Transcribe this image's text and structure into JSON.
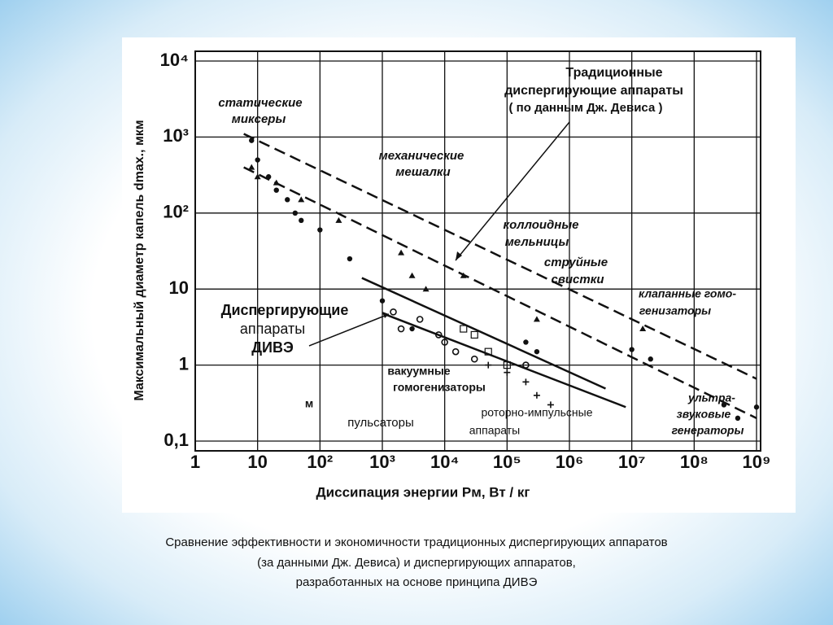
{
  "chart_data": {
    "type": "scatter",
    "xlabel": "Диссипация энергии Pм, Вт / кг",
    "ylabel": "Максимальный диаметр капель dmax., мкм",
    "xscale": "log",
    "yscale": "log",
    "grid": true,
    "xlim": [
      1,
      1000000000
    ],
    "ylim": [
      0.1,
      10000
    ],
    "xticks": [
      1,
      10,
      {
        "value": 100,
        "label": "10²"
      },
      {
        "value": 1000,
        "label": "10³"
      },
      {
        "value": 10000,
        "label": "10⁴"
      },
      {
        "value": 100000,
        "label": "10⁵"
      },
      {
        "value": 1000000,
        "label": "10⁶"
      },
      {
        "value": 10000000,
        "label": "10⁷"
      },
      {
        "value": 100000000,
        "label": "10⁸"
      },
      {
        "value": 1000000000,
        "label": "10⁹"
      }
    ],
    "yticks": [
      {
        "value": 0.1,
        "label": "0,1"
      },
      1,
      10,
      {
        "value": 100,
        "label": "10²"
      },
      {
        "value": 1000,
        "label": "10³"
      },
      {
        "value": 10000,
        "label": "10⁴"
      }
    ],
    "series": [
      {
        "marker": "dot",
        "color": "#111111",
        "x": [
          8,
          10,
          15,
          20,
          30,
          40,
          50,
          100,
          300,
          1000,
          3000,
          200000,
          300000,
          10000000,
          20000000,
          300000000,
          500000000,
          1000000000
        ],
        "values": [
          900,
          500,
          300,
          200,
          150,
          100,
          80,
          60,
          25,
          7,
          3,
          2,
          1.5,
          1.6,
          1.2,
          0.3,
          0.2,
          0.28
        ]
      },
      {
        "marker": "triangle",
        "color": "#111111",
        "x": [
          8,
          10,
          20,
          50,
          200,
          2000,
          3000,
          5000,
          20000,
          300000,
          15000000
        ],
        "values": [
          400,
          300,
          250,
          150,
          80,
          30,
          15,
          10,
          15,
          4,
          3
        ]
      },
      {
        "marker": "circle",
        "color": "#111111",
        "x": [
          1500,
          2000,
          4000,
          8000,
          10000,
          15000,
          30000,
          200000
        ],
        "values": [
          5,
          3,
          4,
          2.5,
          2,
          1.5,
          1.2,
          1
        ]
      },
      {
        "marker": "square",
        "color": "#111111",
        "x": [
          20000,
          30000,
          50000,
          100000
        ],
        "values": [
          3,
          2.5,
          1.5,
          1
        ]
      },
      {
        "marker": "plus",
        "color": "#111111",
        "x": [
          50000,
          100000,
          200000,
          300000,
          500000
        ],
        "values": [
          1,
          0.8,
          0.6,
          0.4,
          0.3
        ]
      }
    ],
    "lines": [
      {
        "style": "dashed",
        "x": [
          6,
          1000000000
        ],
        "values": [
          1100,
          0.66
        ]
      },
      {
        "style": "dashed",
        "x": [
          6,
          1000000000
        ],
        "values": [
          400,
          0.2
        ]
      },
      {
        "style": "solid",
        "x": [
          470,
          3800000
        ],
        "values": [
          14,
          0.49
        ]
      },
      {
        "style": "solid",
        "x": [
          1000,
          8000000
        ],
        "values": [
          4.8,
          0.28
        ]
      }
    ],
    "annotations": [
      "Традиционные",
      "диспергирующие аппараты",
      "( по данным Дж. Девиса )",
      "статические",
      "миксеры",
      "механические",
      "мешалки",
      "коллоидные",
      "мельницы",
      "струйные",
      "свистки",
      "клапанные гомо-",
      "генизаторы",
      "Диспергирующие",
      "аппараты",
      "ДИВЭ",
      "вакуумные",
      "гомогенизаторы",
      "м",
      "пульсаторы",
      "роторно-импульсные",
      "аппараты",
      "ультра-",
      "звуковые",
      "генераторы"
    ]
  },
  "caption": [
    "Сравнение эффективности и экономичности традиционных диспергирующих аппаратов",
    "(за данными Дж. Девиса) и диспергирующих аппаратов,",
    "разработанных на основе принципа ДИВЭ"
  ]
}
